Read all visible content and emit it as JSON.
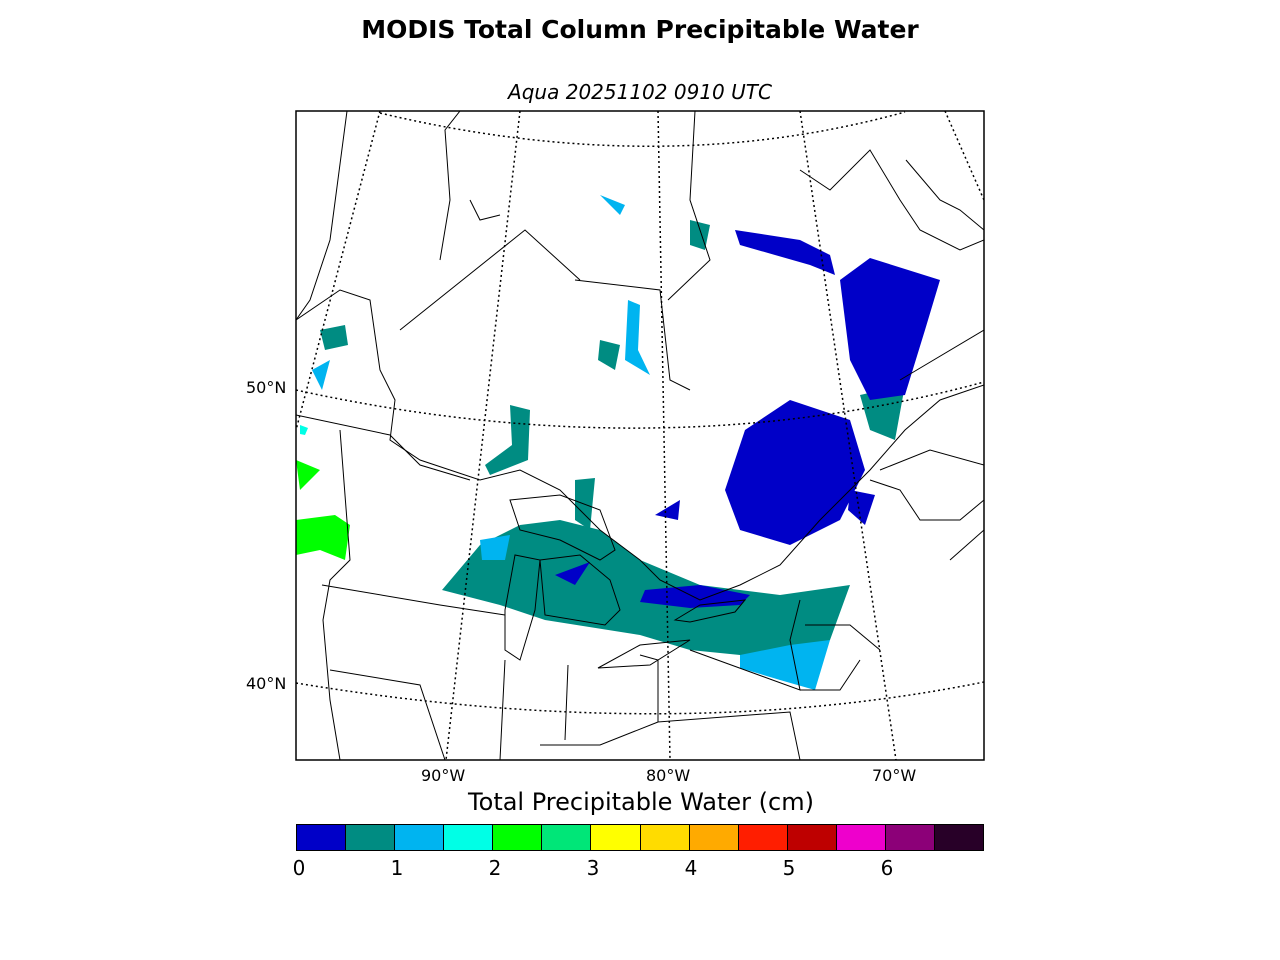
{
  "title": "MODIS Total Column Precipitable Water",
  "subtitle": "Aqua 20251102 0910 UTC",
  "map": {
    "projection": "lambert conformal",
    "region": "Great Lakes / Eastern Canada",
    "lat_labels": [
      "50°N",
      "40°N"
    ],
    "lon_labels": [
      "90°W",
      "80°W",
      "70°W"
    ]
  },
  "colorbar": {
    "label": "Total Precipitable Water (cm)",
    "range": [
      0,
      7
    ],
    "step": 0.5,
    "colors": [
      "#0000c8",
      "#008c82",
      "#00b4f0",
      "#00ffe6",
      "#00ff00",
      "#00e678",
      "#ffff00",
      "#ffdc00",
      "#ffaa00",
      "#ff1e00",
      "#be0000",
      "#ee00cc",
      "#8c0078",
      "#280028"
    ],
    "ticks": [
      "0",
      "1",
      "2",
      "3",
      "4",
      "5",
      "6"
    ]
  }
}
